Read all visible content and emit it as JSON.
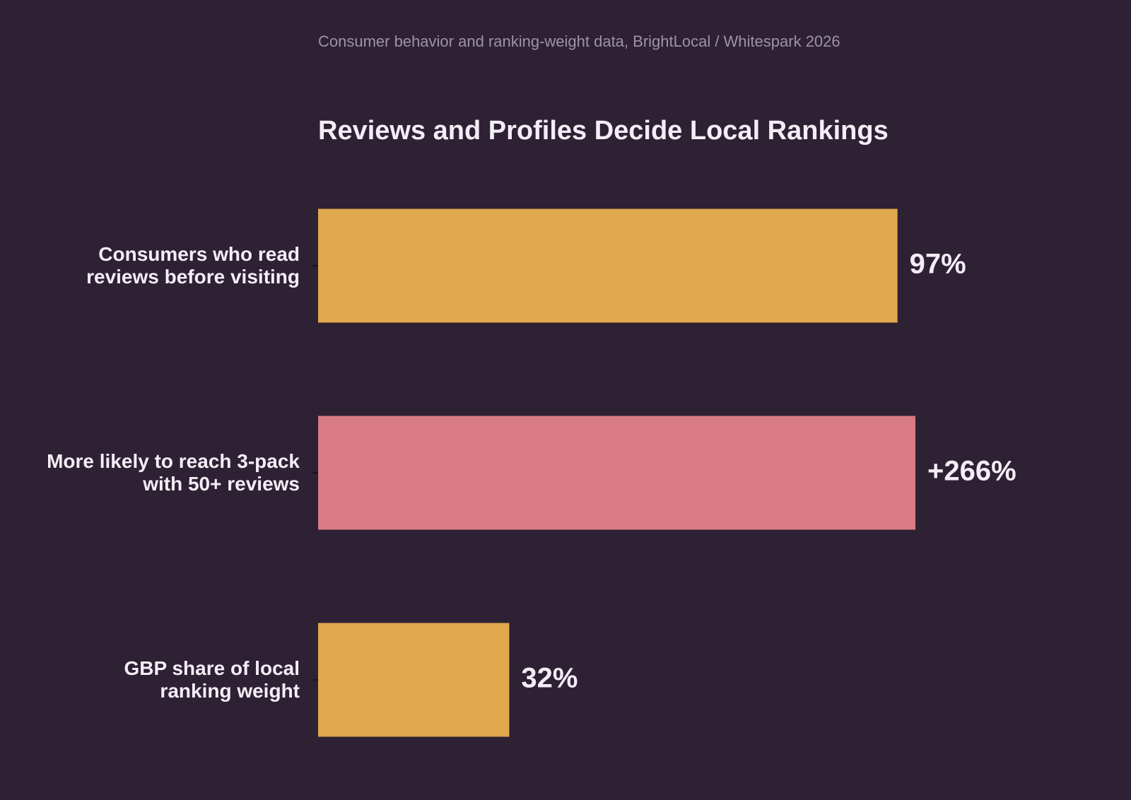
{
  "chart_data": {
    "type": "bar",
    "orientation": "horizontal",
    "subtitle": "Consumer behavior and ranking-weight data, BrightLocal / Whitespark 2026",
    "title": "Reviews and Profiles Decide Local Rankings",
    "categories": [
      "Consumers who read\nreviews before visiting",
      "More likely to reach 3-pack\nwith 50+ reviews",
      "GBP share of local\nranking weight"
    ],
    "values": [
      97,
      266,
      32
    ],
    "value_labels": [
      "97%",
      "+266%",
      "32%"
    ],
    "colors": [
      "#e0a84f",
      "#d97b82",
      "#e0a84f"
    ],
    "xlim": [
      0,
      100
    ]
  }
}
